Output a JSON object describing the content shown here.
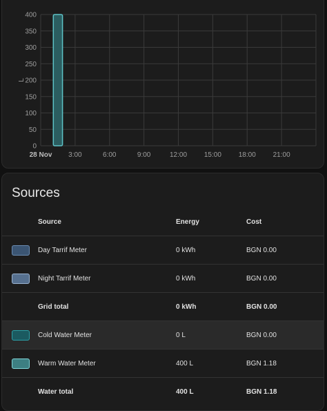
{
  "chart_data": {
    "type": "bar",
    "ylabel": "L",
    "ylim": [
      0,
      400
    ],
    "yticks": [
      0,
      50,
      100,
      150,
      200,
      250,
      300,
      350,
      400
    ],
    "x_tick_labels": [
      "28 Nov",
      "3:00",
      "6:00",
      "9:00",
      "12:00",
      "15:00",
      "18:00",
      "21:00"
    ],
    "hours_per_day": 24,
    "bars": [
      {
        "hour": 1,
        "value": 400,
        "series": "Warm Water Meter"
      }
    ],
    "bar_color": "#5ec3c7",
    "bar_fill": "#2b5d60",
    "grid": true
  },
  "sources": {
    "title": "Sources",
    "headers": {
      "source": "Source",
      "energy": "Energy",
      "cost": "Cost"
    },
    "rows": [
      {
        "name": "Day Tarrif Meter",
        "energy": "0 kWh",
        "cost": "BGN 0.00",
        "fill": "#3b5573",
        "border": "#6a8bb0"
      },
      {
        "name": "Night Tarrif Meter",
        "energy": "0 kWh",
        "cost": "BGN 0.00",
        "fill": "#56708f",
        "border": "#9ab3cf"
      },
      {
        "name": "Grid total",
        "energy": "0 kWh",
        "cost": "BGN 0.00"
      },
      {
        "name": "Cold Water Meter",
        "energy": "0 L",
        "cost": "BGN 0.00",
        "fill": "#1b5a60",
        "border": "#2b9fa6"
      },
      {
        "name": "Warm Water Meter",
        "energy": "400 L",
        "cost": "BGN 1.18",
        "fill": "#3d7f82",
        "border": "#7fd3d6"
      },
      {
        "name": "Water total",
        "energy": "400 L",
        "cost": "BGN 1.18"
      }
    ]
  }
}
